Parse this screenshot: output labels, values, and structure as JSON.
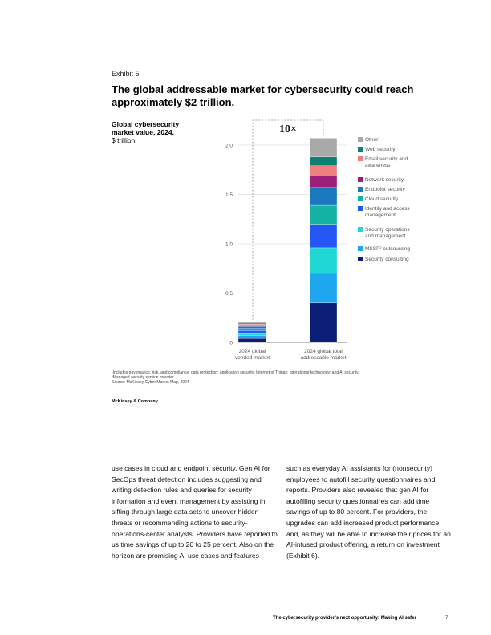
{
  "exhibit": {
    "label": "Exhibit 5",
    "title": "The global addressable market for cybersecurity could reach approximately $2 trillion."
  },
  "chart_title": {
    "bold": "Global cybersecurity market value, 2024,",
    "unit": "$ trillion"
  },
  "chart_data": {
    "type": "bar",
    "stacked": true,
    "categories": [
      "2024 global vended market",
      "2024 global total addressable market"
    ],
    "category_lines": [
      [
        "2024 global",
        "vended market"
      ],
      [
        "2024 global total",
        "addressable market"
      ]
    ],
    "ylim": [
      0,
      2.1
    ],
    "yticks": [
      "0",
      "0.5",
      "1.0",
      "1.5",
      "2.0"
    ],
    "ytick_values": [
      0,
      0.5,
      1.0,
      1.5,
      2.0
    ],
    "grid": true,
    "legend_position": "right",
    "multiplier_label": "10×",
    "series": [
      {
        "name": "Security consulting",
        "color": "#0b1f78",
        "values": [
          0.04,
          0.4
        ]
      },
      {
        "name": "MSSP² outsourcing",
        "color": "#1ea6f0",
        "values": [
          0.03,
          0.3
        ]
      },
      {
        "name": "Security operations and management",
        "color": "#1fd8d6",
        "values": [
          0.025,
          0.26
        ]
      },
      {
        "name": "Identity and access management",
        "color": "#2557f5",
        "values": [
          0.025,
          0.23
        ]
      },
      {
        "name": "Cloud security",
        "color": "#14b3a6",
        "values": [
          0.02,
          0.2
        ]
      },
      {
        "name": "Endpoint security",
        "color": "#1a78bf",
        "values": [
          0.02,
          0.18
        ]
      },
      {
        "name": "Network security",
        "color": "#9c1f7a",
        "values": [
          0.015,
          0.12
        ]
      },
      {
        "name": "Email security and awareness",
        "color": "#f08080",
        "values": [
          0.01,
          0.1
        ]
      },
      {
        "name": "Web security",
        "color": "#0f8074",
        "values": [
          0.01,
          0.09
        ]
      },
      {
        "name": "Other¹",
        "color": "#a9a9a9",
        "values": [
          0.015,
          0.19
        ]
      }
    ],
    "legend_lines": [
      [
        "Other¹"
      ],
      [
        "Web security"
      ],
      [
        "Email security and",
        "awareness"
      ],
      [
        "Network security"
      ],
      [
        "Endpoint security"
      ],
      [
        "Cloud security"
      ],
      [
        "Identity and access",
        "management"
      ],
      [
        "Security operations",
        "and management"
      ],
      [
        "MSSP² outsourcing"
      ],
      [
        "Security consulting"
      ]
    ]
  },
  "footnotes": [
    "¹Includes governance, risk, and compliance; data protection; application security; Internet of Things; operational technology; and AI security.",
    "²Managed security service provider.",
    " Source: McKinsey Cyber Market Map, 2024"
  ],
  "brand": "McKinsey & Company",
  "body": {
    "left": "use cases in cloud and endpoint security. Gen AI for SecOps threat detection includes suggesting and writing detection rules and queries for security information and event management by assisting in sifting through large data sets to uncover hidden threats or recommending actions to security-operations-center analysts. Providers have reported to us time savings of up to 20 to 25 percent. Also on the horizon are promising AI use cases and features",
    "right": "such as everyday AI assistants for (nonsecurity) employees to autofill security questionnaires and reports. Providers also revealed that gen AI for autofilling security questionnaires can add time savings of up to 80 percent. For providers, the upgrades can add increased product performance and, as they will be able to increase their prices for an AI-infused product offering, a return on investment (Exhibit 6)."
  },
  "footer": {
    "running_title": "The cybersecurity provider’s next opportunity: Making AI safer",
    "page_number": "7"
  }
}
